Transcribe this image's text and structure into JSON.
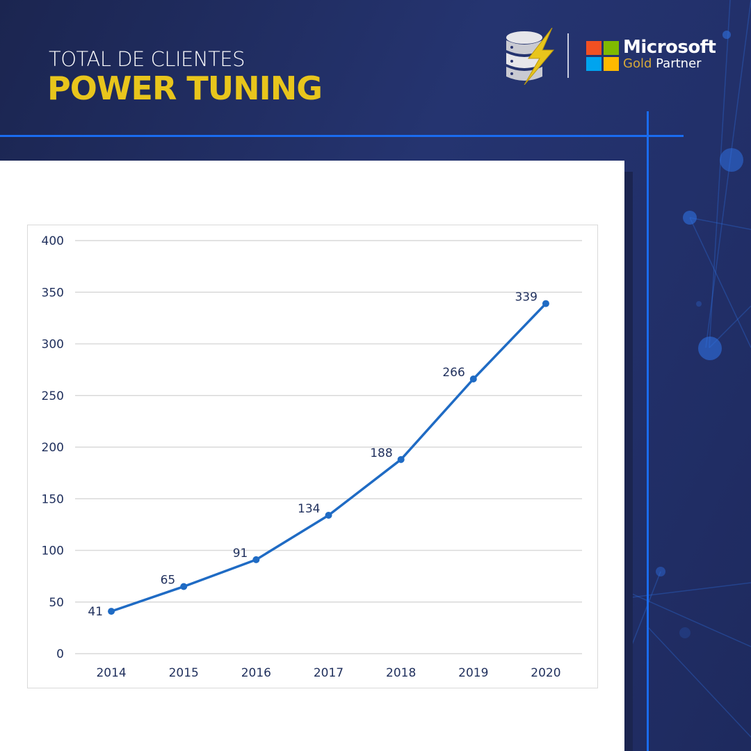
{
  "header": {
    "subtitle": "TOTAL DE CLIENTES",
    "title": "POWER TUNING"
  },
  "partner_badge": {
    "brand": "Microsoft",
    "tier": "Gold",
    "program": "Partner",
    "icon": "power-tuning-database-bolt-icon"
  },
  "colors": {
    "accent_yellow": "#e8c51c",
    "line_blue": "#1f6bc4",
    "divider_blue": "#1a6cf0",
    "background_navy": "#22306a",
    "ms_red": "#f25022",
    "ms_green": "#7fba00",
    "ms_blue": "#00a4ef",
    "ms_yellow": "#ffb900"
  },
  "chart_data": {
    "type": "line",
    "title": "TOTAL DE CLIENTES POWER TUNING",
    "xlabel": "",
    "ylabel": "",
    "categories": [
      "2014",
      "2015",
      "2016",
      "2017",
      "2018",
      "2019",
      "2020"
    ],
    "series": [
      {
        "name": "Clientes",
        "values": [
          41,
          65,
          91,
          134,
          188,
          266,
          339
        ]
      }
    ],
    "ylim": [
      0,
      400
    ],
    "yticks": [
      0,
      50,
      100,
      150,
      200,
      250,
      300,
      350,
      400
    ],
    "grid": true,
    "legend": "none",
    "data_labels": true
  }
}
